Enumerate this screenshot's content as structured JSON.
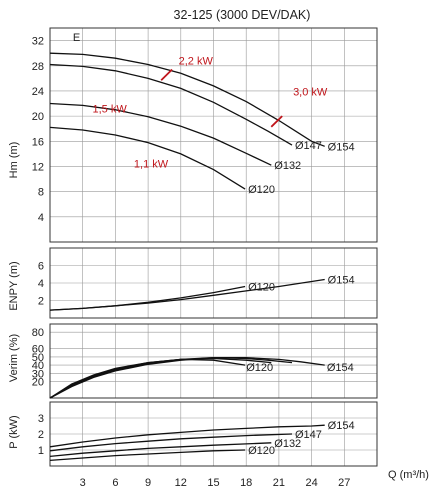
{
  "chart_data": {
    "type": "line",
    "title": "32-125 (3000 DEV/DAK)",
    "xlabel": "Q (m³/h)",
    "x_ticks": [
      3,
      6,
      9,
      12,
      15,
      18,
      21,
      24,
      27
    ],
    "xlim": [
      0,
      30
    ],
    "grid": true,
    "panels": [
      {
        "id": "head",
        "ylabel": "Hm (m)",
        "ylim": [
          0,
          34
        ],
        "y_ticks": [
          4,
          8,
          12,
          16,
          20,
          24,
          28,
          32
        ],
        "top_label": "E",
        "series": [
          {
            "name": "Ø154",
            "x": [
              0,
              3,
              6,
              9,
              12,
              15,
              18,
              21,
              24,
              25.2
            ],
            "y": [
              30,
              29.8,
              29.2,
              28.2,
              26.8,
              24.8,
              22.3,
              19.3,
              16.0,
              15.2
            ]
          },
          {
            "name": "Ø147",
            "x": [
              0,
              3,
              6,
              9,
              12,
              15,
              18,
              20,
              22.2
            ],
            "y": [
              28.2,
              27.9,
              27.2,
              26.0,
              24.4,
              22.2,
              19.5,
              17.6,
              15.4
            ]
          },
          {
            "name": "Ø132",
            "x": [
              0,
              3,
              6,
              9,
              12,
              15,
              18,
              20.3
            ],
            "y": [
              22.0,
              21.7,
              21.0,
              19.9,
              18.4,
              16.5,
              14.1,
              12.2
            ]
          },
          {
            "name": "Ø120",
            "x": [
              0,
              3,
              6,
              9,
              12,
              15,
              17.9
            ],
            "y": [
              18.2,
              17.8,
              17.0,
              15.8,
              14.0,
              11.5,
              8.4
            ]
          }
        ],
        "power_labels": [
          {
            "text": "2,2 kW",
            "x": 11.8,
            "y": 28.2
          },
          {
            "text": "3,0 kW",
            "x": 22.3,
            "y": 23.3
          },
          {
            "text": "1,5 kW",
            "x": 3.9,
            "y": 20.6
          },
          {
            "text": "1,1 kW",
            "x": 7.7,
            "y": 11.8
          }
        ],
        "power_ticks": [
          {
            "x": [
              10.2,
              11.2
            ],
            "y": [
              25.7,
              27.4
            ]
          },
          {
            "x": [
              20.3,
              21.3
            ],
            "y": [
              18.3,
              20.0
            ]
          }
        ]
      },
      {
        "id": "npsh",
        "ylabel": "ENPY (m)",
        "ylim": [
          0,
          8
        ],
        "y_ticks": [
          2,
          4,
          6
        ],
        "series": [
          {
            "name": "Ø120",
            "x": [
              0,
              3,
              6,
              9,
              12,
              15,
              17.9
            ],
            "y": [
              0.9,
              1.1,
              1.4,
              1.8,
              2.3,
              2.9,
              3.6
            ]
          },
          {
            "name": "Ø154",
            "x": [
              0,
              3,
              6,
              9,
              12,
              15,
              18,
              21,
              25.2
            ],
            "y": [
              0.9,
              1.1,
              1.4,
              1.7,
              2.1,
              2.6,
              3.1,
              3.6,
              4.4
            ]
          }
        ]
      },
      {
        "id": "efficiency",
        "ylabel": "Verim (%)",
        "ylim": [
          0,
          90
        ],
        "y_ticks": [
          20,
          30,
          40,
          50,
          60,
          80
        ],
        "series": [
          {
            "name": "Ø154",
            "x": [
              0,
              2,
              4,
              6,
              9,
              12,
              15,
              18,
              21,
              23,
              25.2
            ],
            "y": [
              0,
              14,
              25,
              33,
              41,
              46,
              49,
              49,
              47,
              44,
              40
            ]
          },
          {
            "name": "Ø147",
            "x": [
              0,
              2,
              4,
              6,
              9,
              12,
              15,
              18,
              20,
              22.2
            ],
            "y": [
              0,
              15,
              26,
              34,
              42,
              47,
              49,
              48,
              46,
              43
            ]
          },
          {
            "name": "Ø132",
            "x": [
              0,
              2,
              4,
              6,
              9,
              12,
              15,
              18,
              20.3
            ],
            "y": [
              0,
              16,
              27,
              35,
              43,
              47,
              48,
              46,
              43
            ]
          },
          {
            "name": "Ø120",
            "x": [
              0,
              2,
              4,
              6,
              9,
              12,
              15,
              17.9
            ],
            "y": [
              0,
              17,
              28,
              36,
              43,
              47,
              46,
              40
            ]
          }
        ],
        "labels": [
          {
            "text": "Ø120",
            "x": 18.0,
            "y": 38
          },
          {
            "text": "Ø154",
            "x": 25.4,
            "y": 38
          }
        ]
      },
      {
        "id": "power",
        "ylabel": "P (kW)",
        "ylim": [
          0,
          4
        ],
        "y_ticks": [
          1,
          2,
          3
        ],
        "series": [
          {
            "name": "Ø154",
            "x": [
              0,
              3,
              6,
              9,
              12,
              15,
              18,
              21,
              24,
              25.2
            ],
            "y": [
              1.2,
              1.5,
              1.75,
              1.95,
              2.1,
              2.25,
              2.35,
              2.45,
              2.5,
              2.55
            ]
          },
          {
            "name": "Ø147",
            "x": [
              0,
              3,
              6,
              9,
              12,
              15,
              18,
              20,
              22.2
            ],
            "y": [
              0.95,
              1.2,
              1.4,
              1.55,
              1.7,
              1.8,
              1.9,
              1.95,
              2.0
            ]
          },
          {
            "name": "Ø132",
            "x": [
              0,
              3,
              6,
              9,
              12,
              15,
              18,
              20.3
            ],
            "y": [
              0.6,
              0.8,
              0.95,
              1.1,
              1.2,
              1.3,
              1.38,
              1.45
            ]
          },
          {
            "name": "Ø120",
            "x": [
              0,
              3,
              6,
              9,
              12,
              15,
              17.9
            ],
            "y": [
              0.35,
              0.5,
              0.65,
              0.75,
              0.85,
              0.95,
              1.0
            ]
          }
        ]
      }
    ]
  }
}
